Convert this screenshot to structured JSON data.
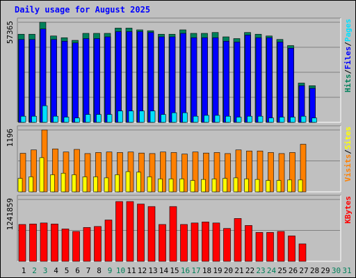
{
  "chart_data": {
    "type": "bar",
    "title": "Daily usage for August 2025",
    "categories": [
      "1",
      "2",
      "3",
      "4",
      "5",
      "6",
      "7",
      "8",
      "9",
      "10",
      "11",
      "12",
      "13",
      "14",
      "15",
      "16",
      "17",
      "18",
      "19",
      "20",
      "21",
      "22",
      "23",
      "24",
      "25",
      "26",
      "27",
      "28",
      "29",
      "30",
      "31"
    ],
    "weekend_days": [
      "2",
      "3",
      "9",
      "10",
      "16",
      "17",
      "23",
      "24",
      "30",
      "31"
    ],
    "day_label_colors": {
      "weekday": "#000000",
      "weekend": "#00805a"
    },
    "colors": {
      "hits": "#00805a",
      "files": "#0000ff",
      "pages": "#00e0ff",
      "visits": "#ff8000",
      "sites": "#ffff00",
      "kbytes": "#ff0000",
      "panel": "#c0c0c0",
      "gridline": "#808080"
    },
    "panels": [
      {
        "id": "top",
        "ymax_label": "57365",
        "ylim": [
          0,
          57365
        ],
        "legend": [
          {
            "text": "Hits",
            "color": "#00805a"
          },
          {
            "text": "Files",
            "color": "#0000ff"
          },
          {
            "text": "Pages",
            "color": "#00e0ff"
          }
        ],
        "series": [
          {
            "name": "Hits",
            "values": [
              50500,
              50500,
              57365,
              49500,
              48500,
              47000,
              51000,
              51000,
              51000,
              54000,
              54000,
              53000,
              52500,
              50500,
              50500,
              53000,
              51000,
              51000,
              51500,
              49000,
              48000,
              51500,
              50500,
              49500,
              47500,
              44000,
              22500,
              21000,
              0,
              0,
              0
            ]
          },
          {
            "name": "Files",
            "values": [
              47500,
              47500,
              53500,
              47500,
              46500,
              45500,
              48000,
              48000,
              49000,
              52000,
              52000,
              52000,
              51500,
              49000,
              49000,
              51000,
              48500,
              48500,
              48500,
              46500,
              46000,
              50000,
              48500,
              48500,
              46000,
              42500,
              21000,
              19500,
              0,
              0,
              0
            ]
          },
          {
            "name": "Pages",
            "values": [
              3500,
              3500,
              9500,
              3500,
              3000,
              2500,
              4500,
              4500,
              4500,
              6500,
              6500,
              6500,
              6500,
              4500,
              5500,
              5500,
              3500,
              4000,
              4000,
              3500,
              3000,
              3500,
              3500,
              2500,
              3000,
              3000,
              3500,
              2500,
              0,
              0,
              0
            ]
          }
        ]
      },
      {
        "id": "middle",
        "ymax_label": "1196",
        "ylim": [
          0,
          1196
        ],
        "legend": [
          {
            "text": "Visits",
            "color": "#ff8000"
          },
          {
            "text": "Sites",
            "color": "#ffff00"
          }
        ],
        "series": [
          {
            "name": "Visits",
            "values": [
              745,
              810,
              1196,
              830,
              770,
              820,
              740,
              760,
              770,
              760,
              770,
              750,
              740,
              770,
              760,
              730,
              770,
              750,
              760,
              740,
              810,
              790,
              790,
              760,
              740,
              760,
              920,
              0,
              0,
              0,
              0
            ]
          },
          {
            "name": "Sites",
            "values": [
              260,
              290,
              660,
              330,
              360,
              330,
              290,
              290,
              270,
              330,
              390,
              380,
              290,
              250,
              250,
              250,
              220,
              240,
              250,
              260,
              270,
              250,
              240,
              220,
              220,
              230,
              230,
              0,
              0,
              0,
              0
            ]
          }
        ]
      },
      {
        "id": "bottom",
        "ymax_label": "1241859",
        "ylim": [
          0,
          1241859
        ],
        "legend": [
          {
            "text": "KBytes",
            "color": "#ff0000"
          }
        ],
        "series": [
          {
            "name": "KBytes",
            "values": [
              740000,
              750000,
              770000,
              750000,
              650000,
              600000,
              680000,
              700000,
              830000,
              1200000,
              1200000,
              1150000,
              1100000,
              740000,
              1100000,
              740000,
              770000,
              790000,
              770000,
              660000,
              860000,
              720000,
              580000,
              580000,
              600000,
              510000,
              350000,
              0,
              0,
              0,
              0
            ]
          }
        ]
      }
    ]
  }
}
